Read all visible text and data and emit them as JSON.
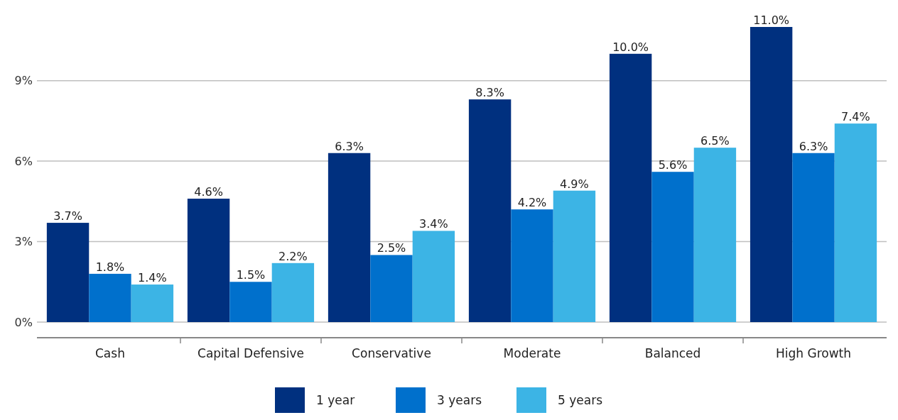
{
  "chart_data": {
    "type": "bar",
    "categories": [
      "Cash",
      "Capital Defensive",
      "Conservative",
      "Moderate",
      "Balanced",
      "High Growth"
    ],
    "series": [
      {
        "name": "1 year",
        "color": "#00307f",
        "values": [
          3.7,
          4.6,
          6.3,
          8.3,
          10.0,
          11.0
        ],
        "value_labels": [
          "3.7%",
          "4.6%",
          "6.3%",
          "8.3%",
          "10.0%",
          "11.0%"
        ]
      },
      {
        "name": "3 years",
        "color": "#0070cc",
        "values": [
          1.8,
          1.5,
          2.5,
          4.2,
          5.6,
          6.3
        ],
        "value_labels": [
          "1.8%",
          "1.5%",
          "2.5%",
          "4.2%",
          "5.6%",
          "6.3%"
        ]
      },
      {
        "name": "5 years",
        "color": "#3cb4e5",
        "values": [
          1.4,
          2.2,
          3.4,
          4.9,
          6.5,
          7.4
        ],
        "value_labels": [
          "1.4%",
          "2.2%",
          "3.4%",
          "4.9%",
          "6.5%",
          "7.4%"
        ]
      }
    ],
    "ylim": [
      0,
      11
    ],
    "yticks": [
      {
        "value": 0,
        "label": "0%"
      },
      {
        "value": 3,
        "label": "3%"
      },
      {
        "value": 6,
        "label": "6%"
      },
      {
        "value": 9,
        "label": "9%"
      }
    ],
    "grid": "y",
    "legend": "bottom"
  }
}
